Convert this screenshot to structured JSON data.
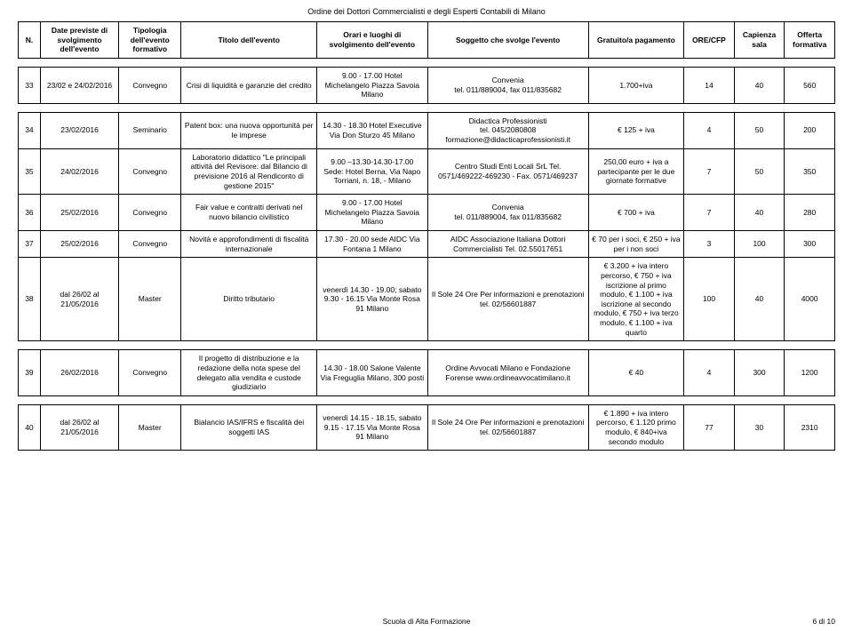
{
  "page_header": "Ordine dei Dottori Commercialisti e degli Esperti Contabili di Milano",
  "footer_center": "Scuola di Alta Formazione",
  "footer_page": "6 di 10",
  "columns": {
    "n": "N.",
    "date": "Date previste di svolgimento dell'evento",
    "tipo": "Tipologia dell'evento formativo",
    "titolo": "Titolo dell'evento",
    "orari": "Orari e luoghi di svolgimento dell'evento",
    "sogg": "Soggetto che svolge l'evento",
    "grat": "Gratuito/a pagamento",
    "ore": "ORE/CFP",
    "cap": "Capienza sala",
    "off": "Offerta formativa"
  },
  "rows": [
    {
      "n": "33",
      "date": "23/02 e 24/02/2016",
      "tipo": "Convegno",
      "titolo": "Crisi di liquidità e garanzie del credito",
      "orari": "9.00 - 17.00 Hotel Michelangelo Piazza Savoia Milano",
      "sogg": "Convenia\ntel. 011/889004, fax 011/835682",
      "grat": "1.700+iva",
      "ore": "14",
      "cap": "40",
      "off": "560"
    },
    {
      "n": "34",
      "date": "23/02/2016",
      "tipo": "Seminario",
      "titolo": "Patent box: una nuova opportunità per le imprese",
      "orari": "14.30 - 18.30 Hotel Executive Via Don Sturzo 45 Milano",
      "sogg": "Didactica Professionisti\ntel. 045/2080808\nformazione@didacticaprofessionisti.it",
      "grat": "€ 125 + iva",
      "ore": "4",
      "cap": "50",
      "off": "200"
    },
    {
      "n": "35",
      "date": "24/02/2016",
      "tipo": "Convegno",
      "titolo": "Laboratorio didattico \"Le principali attività del Revisore: dal Bilancio di previsione 2016 al Rendiconto di gestione 2015\"",
      "orari": "9.00 –13.30-14.30-17.00\nSede: Hotel Berna, Via Napo Torriani, n. 18, - Milano",
      "sogg": "Centro Studi Enti Locali SrL Tel. 0571/469222-469230 - Fax. 0571/469237",
      "grat": "250,00 euro + iva a partecipante per le due giornate formative",
      "ore": "7",
      "cap": "50",
      "off": "350"
    },
    {
      "n": "36",
      "date": "25/02/2016",
      "tipo": "Convegno",
      "titolo": "Fair value e contratti derivati nel nuovo bilancio civilistico",
      "orari": "9.00 - 17.00 Hotel Michelangelo Piazza Savoia Milano",
      "sogg": "Convenia\ntel. 011/889004, fax 011/835682",
      "grat": "€ 700 + iva",
      "ore": "7",
      "cap": "40",
      "off": "280"
    },
    {
      "n": "37",
      "date": "25/02/2016",
      "tipo": "Convegno",
      "titolo": "Novità e approfondimenti di fiscalità internazionale",
      "orari": "17.30 - 20.00 sede AIDC Via Fontana 1 Milano",
      "sogg": "AIDC Associazione Italiana Dottori Commercialisti Tel. 02.55017651",
      "grat": "€ 70 per i soci, € 250 + iva per i non soci",
      "ore": "3",
      "cap": "100",
      "off": "300"
    },
    {
      "n": "38",
      "date": "dal 26/02 al 21/05/2016",
      "tipo": "Master",
      "titolo": "Diritto tributario",
      "orari": "venerdì 14.30 - 19.00; sabato 9.30 - 16.15 Via Monte Rosa 91 Milano",
      "sogg": "Il Sole 24 Ore  Per informazioni e prenotazioni tel. 02/56601887",
      "grat": "€ 3.200 + iva intero percorso, € 750 + iva iscrizione al primo modulo, € 1.100 + iva iscrizione al secondo modulo, € 750 + iva terzo modulo, € 1.100 + iva quarto",
      "ore": "100",
      "cap": "40",
      "off": "4000"
    },
    {
      "n": "39",
      "date": "26/02/2016",
      "tipo": "Convegno",
      "titolo": "Il progetto di distribuzione e la redazione della nota spese del delegato alla vendita e custode giudiziario",
      "orari": "14.30 - 18.00 Salone Valente Via Freguglia Milano, 300 posti",
      "sogg": "Ordine Avvocati Milano e Fondazione Forense www.ordineavvocatimilano.it",
      "grat": "€ 40",
      "ore": "4",
      "cap": "300",
      "off": "1200"
    },
    {
      "n": "40",
      "date": "dal 26/02 al 21/05/2016",
      "tipo": "Master",
      "titolo": "Bialancio IAS/IFRS e fiscalità dei soggetti IAS",
      "orari": "venerdì 14.15 - 18.15, sabato 9.15 - 17.15 Via Monte Rosa 91 Milano",
      "sogg": "Il Sole 24 Ore  Per informazioni e prenotazioni tel. 02/56601887",
      "grat": "€ 1.890 + iva intero percorso, € 1.120 primo modulo, € 840+iva secondo modulo",
      "ore": "77",
      "cap": "30",
      "off": "2310"
    }
  ]
}
